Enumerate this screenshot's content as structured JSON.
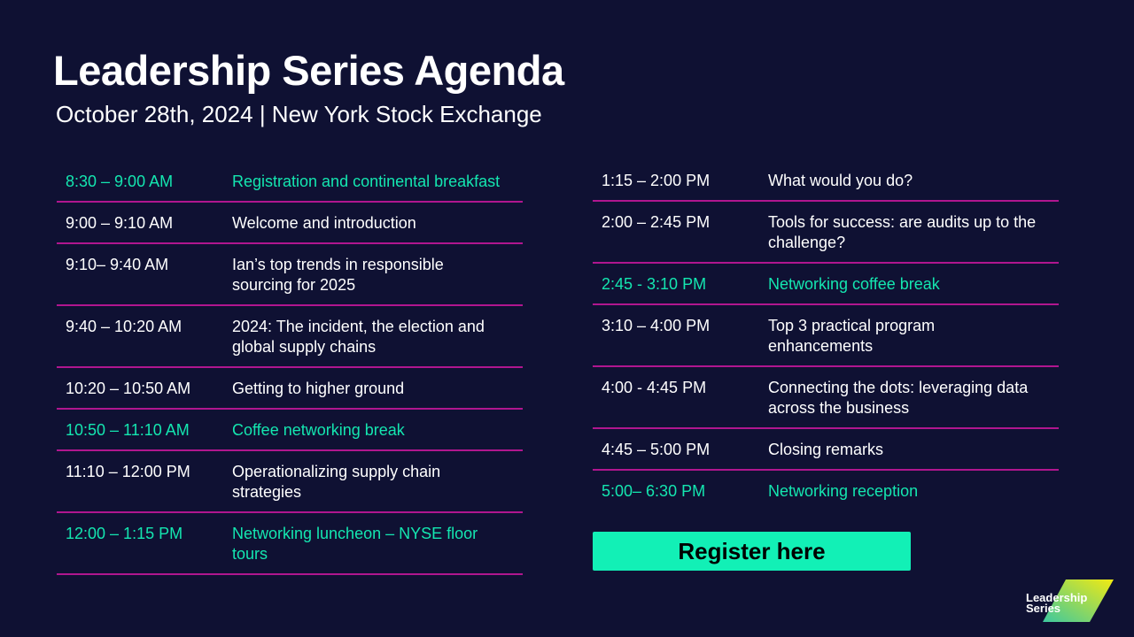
{
  "header": {
    "title": "Leadership Series Agenda",
    "subtitle": "October 28th, 2024 | New York Stock Exchange"
  },
  "colors": {
    "background": "#0f1133",
    "highlight": "#14e6b0",
    "divider": "#b0168f",
    "button": "#12f0b6"
  },
  "left": [
    {
      "time": "8:30 – 9:00 AM",
      "title": "Registration and continental breakfast",
      "highlight": true
    },
    {
      "time": "9:00 – 9:10 AM",
      "title": "Welcome and introduction",
      "highlight": false
    },
    {
      "time": "9:10– 9:40 AM",
      "title": "Ian’s top trends in responsible sourcing for 2025",
      "highlight": false
    },
    {
      "time": "9:40 – 10:20 AM",
      "title": "2024:  The incident, the election and global supply chains",
      "highlight": false
    },
    {
      "time": "10:20 – 10:50 AM",
      "title": "Getting to higher ground",
      "highlight": false
    },
    {
      "time": "10:50 – 11:10 AM",
      "title": "Coffee networking break",
      "highlight": true
    },
    {
      "time": "11:10 – 12:00 PM",
      "title": "Operationalizing supply chain strategies",
      "highlight": false
    },
    {
      "time": "12:00 – 1:15 PM",
      "title": "Networking luncheon – NYSE floor tours",
      "highlight": true
    }
  ],
  "right": [
    {
      "time": "1:15 – 2:00 PM",
      "title": "What would you do?",
      "highlight": false
    },
    {
      "time": "2:00 – 2:45 PM",
      "title": "Tools for success: are audits up to the challenge?",
      "highlight": false
    },
    {
      "time": "2:45 - 3:10 PM",
      "title": "Networking coffee break",
      "highlight": true
    },
    {
      "time": "3:10 – 4:00 PM",
      "title": "Top 3 practical program enhancements",
      "highlight": false
    },
    {
      "time": "4:00 - 4:45 PM",
      "title": "Connecting the dots: leveraging data across the business",
      "highlight": false
    },
    {
      "time": "4:45 – 5:00 PM",
      "title": "Closing remarks",
      "highlight": false
    },
    {
      "time": "5:00– 6:30 PM",
      "title": "Networking reception",
      "highlight": true
    }
  ],
  "register_label": "Register here",
  "logo": {
    "line1": "Leadership",
    "line2": "Series"
  }
}
